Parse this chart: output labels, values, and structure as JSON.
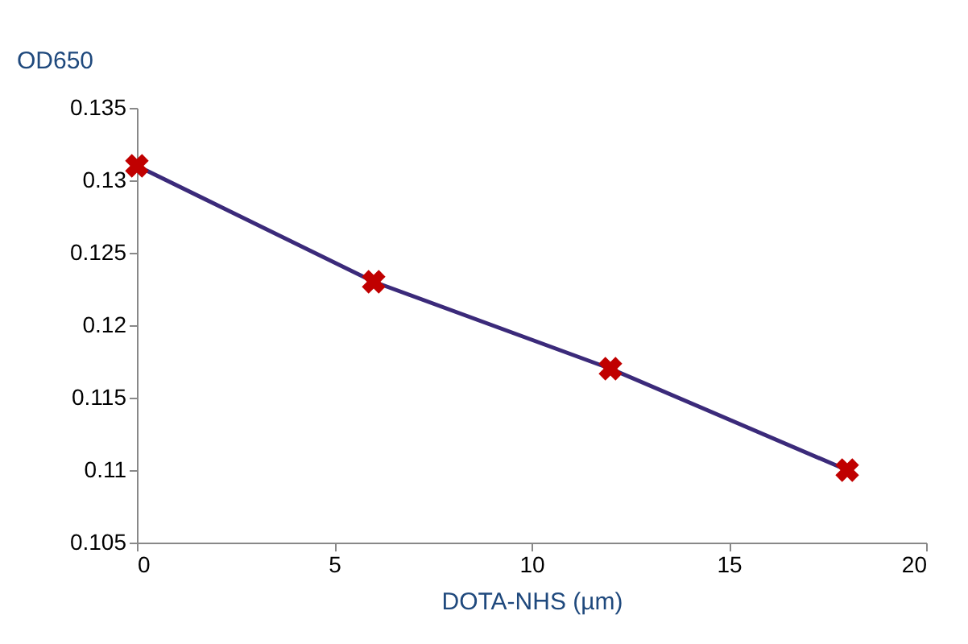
{
  "chart_data": {
    "type": "line",
    "ylabel": "OD650",
    "xlabel": "DOTA-NHS (µm)",
    "x": [
      0,
      6,
      12,
      18
    ],
    "series": [
      {
        "color": "#3b2a7a",
        "marker": "none",
        "values": [
          0.131,
          0.123,
          0.117,
          0.11
        ]
      },
      {
        "type": "scatter",
        "color": "#c00000",
        "marker": "cross",
        "values": [
          0.131,
          0.123,
          0.117,
          0.11
        ]
      }
    ],
    "xlim": [
      0,
      20
    ],
    "xticks": [
      0,
      5,
      10,
      15,
      20
    ],
    "ylim": [
      0.105,
      0.135
    ],
    "yticks": [
      0.105,
      0.11,
      0.115,
      0.12,
      0.125,
      0.13,
      0.135
    ],
    "grid": false
  }
}
